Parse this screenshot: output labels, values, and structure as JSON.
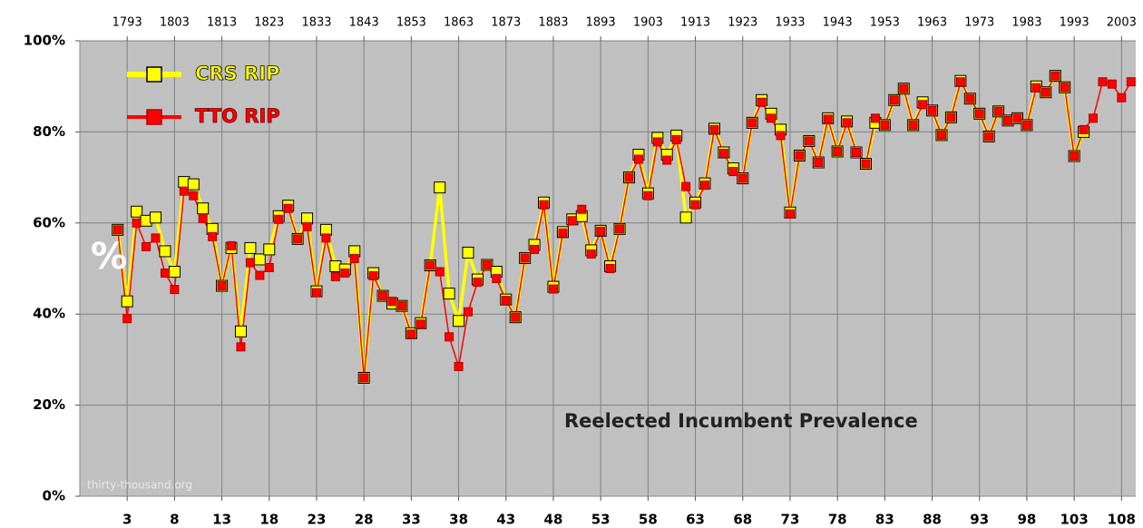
{
  "chart_data": {
    "type": "line",
    "annotation": "Reelected Incumbent Prevalence",
    "y_label": "%",
    "source": "thirty-thousand.org",
    "x": [
      2,
      3,
      4,
      5,
      6,
      7,
      8,
      9,
      10,
      11,
      12,
      13,
      14,
      15,
      16,
      17,
      18,
      19,
      20,
      21,
      22,
      23,
      24,
      25,
      26,
      27,
      28,
      29,
      30,
      31,
      32,
      33,
      34,
      35,
      36,
      37,
      38,
      39,
      40,
      41,
      42,
      43,
      44,
      45,
      46,
      47,
      48,
      49,
      50,
      51,
      52,
      53,
      54,
      55,
      56,
      57,
      58,
      59,
      60,
      61,
      62,
      63,
      64,
      65,
      66,
      67,
      68,
      69,
      70,
      71,
      72,
      73,
      74,
      75,
      76,
      77,
      78,
      79,
      80,
      81,
      82,
      83,
      84,
      85,
      86,
      87,
      88,
      89,
      90,
      91,
      92,
      93,
      94,
      95,
      96,
      97,
      98,
      99,
      100,
      101,
      102,
      103,
      104,
      105,
      106,
      107,
      108,
      109
    ],
    "series": [
      {
        "name": "CRS RIP",
        "color": "#ffff00",
        "values": [
          58.5,
          42.8,
          62.5,
          60.5,
          61.2,
          53.8,
          49.3,
          69,
          68.5,
          63.2,
          58.7,
          46.2,
          54.5,
          36.2,
          54.5,
          52,
          54.2,
          61.5,
          63.8,
          56.5,
          61,
          45,
          58.5,
          50.5,
          49.8,
          53.8,
          26,
          49,
          44,
          42.3,
          41.8,
          35.8,
          38,
          50.7,
          67.8,
          44.5,
          38.5,
          53.5,
          47.6,
          50.8,
          49.3,
          43.2,
          39.3,
          52.3,
          55.2,
          64.5,
          46,
          58,
          60.8,
          61.5,
          54,
          58.3,
          50.5,
          58.7,
          70,
          75,
          66.5,
          78.7,
          75,
          79.2,
          61.2,
          64.5,
          68.7,
          80.7,
          75.5,
          72,
          69.8,
          82,
          87,
          84,
          80.5,
          62.3,
          74.8,
          78,
          73.3,
          83,
          75.7,
          82.3,
          75.5,
          73,
          82,
          81.5,
          87,
          89.5,
          81.5,
          86.5,
          84.7,
          79.3,
          83.2,
          91.2,
          87.3,
          84,
          79,
          84.5,
          82.5,
          83,
          81.5,
          90,
          88.7,
          92.3,
          89.8,
          74.7,
          80,
          null,
          null,
          null,
          null,
          null
        ]
      },
      {
        "name": "TTO RIP",
        "color": "#ff0000",
        "values": [
          58.5,
          39,
          60,
          54.8,
          56.7,
          49,
          45.4,
          67,
          66,
          61,
          57,
          46.2,
          55,
          32.8,
          51.3,
          48.5,
          50.2,
          60.8,
          63.2,
          56.5,
          59.2,
          44.7,
          56.7,
          48.2,
          49,
          52.2,
          26,
          48.4,
          44,
          42.8,
          41.8,
          35.6,
          37.8,
          50.7,
          49.3,
          35,
          28.5,
          40.5,
          47,
          50.8,
          47.8,
          43,
          39.3,
          52.3,
          54.2,
          64,
          45.5,
          57.8,
          60.5,
          63,
          53.2,
          58.2,
          50,
          58.7,
          70,
          74,
          66,
          77.8,
          73.8,
          78.3,
          68,
          64,
          68.3,
          80.5,
          75.3,
          71.3,
          69.8,
          82,
          86.5,
          83,
          79.2,
          62,
          74.8,
          78,
          73.3,
          82.8,
          75.7,
          82,
          75.5,
          73,
          83,
          81.5,
          87,
          89.5,
          81.5,
          86,
          84.7,
          79.3,
          83.2,
          91,
          87.3,
          84,
          79,
          84.5,
          82.5,
          83,
          81.5,
          89.7,
          88.7,
          92.3,
          89.8,
          74.7,
          80.5,
          83,
          91,
          90.5,
          87.5,
          91
        ]
      }
    ],
    "xlim": [
      -2,
      109.5
    ],
    "xticks": [
      3,
      8,
      13,
      18,
      23,
      28,
      33,
      38,
      43,
      48,
      53,
      58,
      63,
      68,
      73,
      78,
      83,
      88,
      93,
      98,
      103,
      108
    ],
    "x2ticks": [
      {
        "value": 3,
        "label": "1793"
      },
      {
        "value": 8,
        "label": "1803"
      },
      {
        "value": 13,
        "label": "1813"
      },
      {
        "value": 18,
        "label": "1823"
      },
      {
        "value": 23,
        "label": "1833"
      },
      {
        "value": 28,
        "label": "1843"
      },
      {
        "value": 33,
        "label": "1853"
      },
      {
        "value": 38,
        "label": "1863"
      },
      {
        "value": 43,
        "label": "1873"
      },
      {
        "value": 48,
        "label": "1883"
      },
      {
        "value": 53,
        "label": "1893"
      },
      {
        "value": 58,
        "label": "1903"
      },
      {
        "value": 63,
        "label": "1913"
      },
      {
        "value": 68,
        "label": "1923"
      },
      {
        "value": 73,
        "label": "1933"
      },
      {
        "value": 78,
        "label": "1943"
      },
      {
        "value": 83,
        "label": "1953"
      },
      {
        "value": 88,
        "label": "1963"
      },
      {
        "value": 93,
        "label": "1973"
      },
      {
        "value": 98,
        "label": "1983"
      },
      {
        "value": 103,
        "label": "1993"
      },
      {
        "value": 108,
        "label": "2003"
      }
    ],
    "ylim": [
      0,
      100
    ],
    "yticks": [
      {
        "value": 0,
        "label": "0%"
      },
      {
        "value": 20,
        "label": "20%"
      },
      {
        "value": 40,
        "label": "40%"
      },
      {
        "value": 60,
        "label": "60%"
      },
      {
        "value": 80,
        "label": "80%"
      },
      {
        "value": 100,
        "label": "100%"
      }
    ],
    "grid": true
  }
}
